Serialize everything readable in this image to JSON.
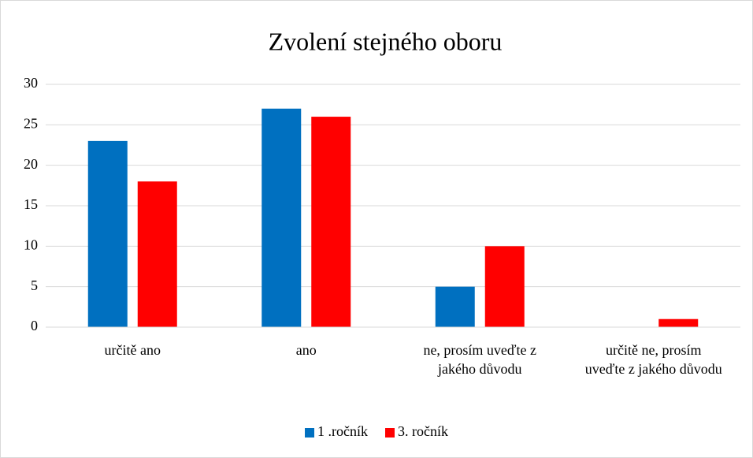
{
  "chart_data": {
    "type": "bar",
    "title": "Zvolení stejného oboru",
    "categories": [
      "určitě ano",
      "ano",
      "ne, prosím uveďte z jakého důvodu",
      "určitě ne, prosím uveďte z jakého důvodu"
    ],
    "series": [
      {
        "name": "1 .ročník",
        "color": "#0070c0",
        "values": [
          23,
          27,
          5,
          0
        ]
      },
      {
        "name": "3. ročník",
        "color": "#ff0000",
        "values": [
          18,
          26,
          10,
          1
        ]
      }
    ],
    "ylim": [
      0,
      30
    ],
    "yticks": [
      0,
      5,
      10,
      15,
      20,
      25,
      30
    ],
    "grid": true,
    "legend": "bottom"
  }
}
